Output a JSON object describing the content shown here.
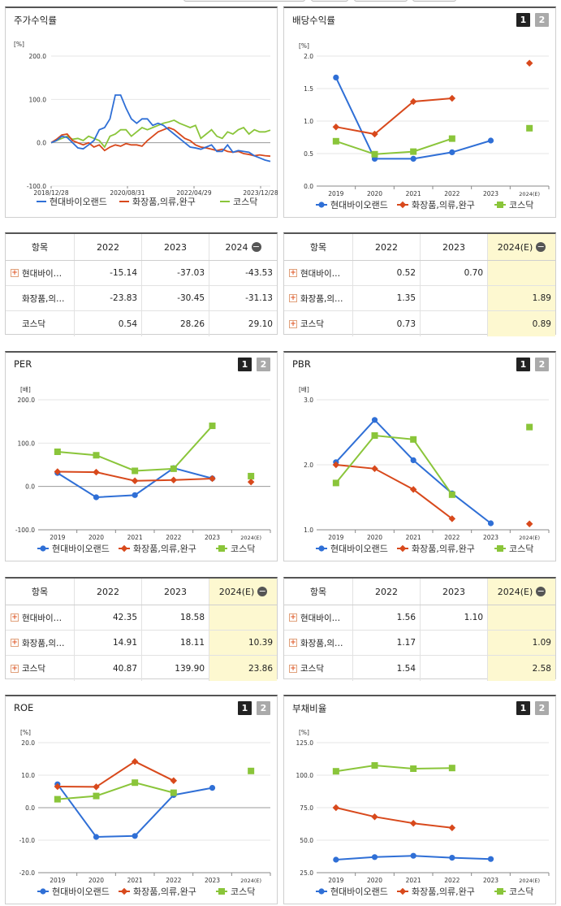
{
  "legend": {
    "s1": "현대바이오랜드",
    "s2": "화장품,의류,완구",
    "s3": "코스닥"
  },
  "colors": {
    "s1": "#2f6fd6",
    "s2": "#d8491c",
    "s3": "#8ac53a"
  },
  "panels": {
    "stock": {
      "title": "주가수익률",
      "unit": "[%]",
      "chart_data": {
        "type": "line",
        "yticks": [
          "200.0",
          "100.0",
          "0.0",
          "-100.0"
        ],
        "ylim": [
          -100,
          200
        ],
        "xticks": [
          "2018/12/28",
          "2020/08/31",
          "2022/04/29",
          "2023/12/28"
        ],
        "series": [
          {
            "name": "현대바이오랜드",
            "values": [
              0,
              5,
              15,
              12,
              0,
              -12,
              -14,
              -5,
              5,
              30,
              35,
              55,
              110,
              110,
              80,
              55,
              45,
              55,
              55,
              40,
              45,
              40,
              30,
              20,
              10,
              0,
              -10,
              -12,
              -15,
              -10,
              -5,
              -20,
              -20,
              -5,
              -22,
              -18,
              -20,
              -22,
              -30,
              -35,
              -40,
              -43
            ]
          },
          {
            "name": "화장품,의류,완구",
            "values": [
              0,
              8,
              18,
              20,
              5,
              0,
              -5,
              0,
              -10,
              -5,
              -18,
              -10,
              -5,
              -8,
              -2,
              -5,
              -5,
              -8,
              5,
              15,
              25,
              30,
              35,
              30,
              20,
              10,
              5,
              -5,
              -10,
              -12,
              -15,
              -18,
              -15,
              -20,
              -22,
              -20,
              -25,
              -27,
              -30,
              -28,
              -30,
              -31
            ]
          },
          {
            "name": "코스닥",
            "values": [
              0,
              5,
              10,
              15,
              8,
              10,
              5,
              15,
              10,
              5,
              -10,
              15,
              20,
              30,
              30,
              15,
              25,
              35,
              30,
              35,
              40,
              45,
              48,
              52,
              45,
              40,
              35,
              40,
              10,
              20,
              30,
              15,
              10,
              25,
              20,
              30,
              35,
              20,
              30,
              25,
              25,
              29
            ]
          }
        ]
      }
    },
    "dividend": {
      "title": "배당수익률",
      "unit": "[%]",
      "chart_data": {
        "type": "line",
        "categories": [
          "2019",
          "2020",
          "2021",
          "2022",
          "2023",
          "2024(E)"
        ],
        "yticks": [
          "2.0",
          "1.5",
          "1.0",
          "0.5",
          "0.0"
        ],
        "ylim": [
          0,
          2
        ],
        "series": [
          {
            "name": "현대바이오랜드",
            "values": [
              1.67,
              0.42,
              0.42,
              0.52,
              0.7,
              null
            ]
          },
          {
            "name": "화장품,의류,완구",
            "values": [
              0.91,
              0.8,
              1.3,
              1.35,
              null,
              1.89
            ]
          },
          {
            "name": "코스닥",
            "values": [
              0.69,
              0.49,
              0.53,
              0.73,
              null,
              0.89
            ]
          }
        ]
      }
    },
    "per": {
      "title": "PER",
      "unit": "[배]",
      "chart_data": {
        "type": "line",
        "categories": [
          "2019",
          "2020",
          "2021",
          "2022",
          "2023",
          "2024(E)"
        ],
        "yticks": [
          "200.0",
          "100.0",
          "0.0",
          "-100.0"
        ],
        "ylim": [
          -100,
          200
        ],
        "series": [
          {
            "name": "현대바이오랜드",
            "values": [
              31,
              -25,
              -20,
              42.35,
              18.58,
              null
            ]
          },
          {
            "name": "화장품,의류,완구",
            "values": [
              34,
              33,
              13,
              14.91,
              18.11,
              10.39
            ]
          },
          {
            "name": "코스닥",
            "values": [
              80,
              72,
              36,
              40.87,
              139.9,
              23.86
            ]
          }
        ]
      }
    },
    "pbr": {
      "title": "PBR",
      "unit": "[배]",
      "chart_data": {
        "type": "line",
        "categories": [
          "2019",
          "2020",
          "2021",
          "2022",
          "2023",
          "2024(E)"
        ],
        "yticks": [
          "3.0",
          "2.0",
          "1.0"
        ],
        "ylim": [
          1,
          3
        ],
        "series": [
          {
            "name": "현대바이오랜드",
            "values": [
              2.04,
              2.69,
              2.07,
              1.56,
              1.1,
              null
            ]
          },
          {
            "name": "화장품,의류,완구",
            "values": [
              2.0,
              1.94,
              1.62,
              1.17,
              null,
              1.09
            ]
          },
          {
            "name": "코스닥",
            "values": [
              1.72,
              2.45,
              2.39,
              1.54,
              null,
              2.58
            ]
          }
        ]
      }
    },
    "roe": {
      "title": "ROE",
      "unit": "[%]",
      "chart_data": {
        "type": "line",
        "categories": [
          "2019",
          "2020",
          "2021",
          "2022",
          "2023",
          "2024(E)"
        ],
        "yticks": [
          "20.0",
          "10.0",
          "0.0",
          "-10.0",
          "-20.0"
        ],
        "ylim": [
          -20,
          20
        ],
        "series": [
          {
            "name": "현대바이오랜드",
            "values": [
              7.2,
              -9.0,
              -8.7,
              3.9,
              6.1,
              null
            ]
          },
          {
            "name": "화장품,의류,완구",
            "values": [
              6.5,
              6.4,
              14.2,
              8.3,
              null,
              null
            ]
          },
          {
            "name": "코스닥",
            "values": [
              2.6,
              3.6,
              7.7,
              4.6,
              null,
              11.3
            ]
          }
        ]
      }
    },
    "debt": {
      "title": "부채비율",
      "unit": "[%]",
      "chart_data": {
        "type": "line",
        "categories": [
          "2019",
          "2020",
          "2021",
          "2022",
          "2023",
          "2024(E)"
        ],
        "yticks": [
          "125.0",
          "100.0",
          "75.0",
          "50.0",
          "25.0"
        ],
        "ylim": [
          25,
          125
        ],
        "series": [
          {
            "name": "현대바이오랜드",
            "values": [
              35,
              37,
              38,
              36.5,
              35.5,
              null
            ]
          },
          {
            "name": "화장품,의류,완구",
            "values": [
              75,
              68,
              63,
              59.5,
              null,
              null
            ]
          },
          {
            "name": "코스닥",
            "values": [
              103,
              107.5,
              105,
              105.5,
              null,
              null
            ]
          }
        ]
      }
    }
  },
  "tables": {
    "stock": {
      "header": [
        "항목",
        "2022",
        "2023",
        "2024"
      ],
      "minus": "−",
      "rows": [
        {
          "name": "현대바이오랜드",
          "short": "현대바이…",
          "plus": true,
          "vals": [
            "-15.14",
            "-37.03",
            "-43.53"
          ]
        },
        {
          "name": "화장품,의류,완구",
          "short": "화장품,의…",
          "plus": false,
          "vals": [
            "-23.83",
            "-30.45",
            "-31.13"
          ]
        },
        {
          "name": "코스닥",
          "short": "코스닥",
          "plus": false,
          "vals": [
            "0.54",
            "28.26",
            "29.10"
          ]
        }
      ]
    },
    "dividend": {
      "header": [
        "항목",
        "2022",
        "2023",
        "2024(E)"
      ],
      "minus": "−",
      "rows": [
        {
          "name": "현대바이오랜드",
          "short": "현대바이…",
          "plus": true,
          "vals": [
            "0.52",
            "0.70",
            ""
          ]
        },
        {
          "name": "화장품,의류,완구",
          "short": "화장품,의…",
          "plus": true,
          "vals": [
            "1.35",
            "",
            "1.89"
          ]
        },
        {
          "name": "코스닥",
          "short": "코스닥",
          "plus": true,
          "vals": [
            "0.73",
            "",
            "0.89"
          ]
        }
      ]
    },
    "per": {
      "header": [
        "항목",
        "2022",
        "2023",
        "2024(E)"
      ],
      "minus": "−",
      "rows": [
        {
          "name": "현대바이오랜드",
          "short": "현대바이…",
          "plus": true,
          "vals": [
            "42.35",
            "18.58",
            ""
          ]
        },
        {
          "name": "화장품,의류,완구",
          "short": "화장품,의…",
          "plus": true,
          "vals": [
            "14.91",
            "18.11",
            "10.39"
          ]
        },
        {
          "name": "코스닥",
          "short": "코스닥",
          "plus": true,
          "vals": [
            "40.87",
            "139.90",
            "23.86"
          ]
        }
      ]
    },
    "pbr": {
      "header": [
        "항목",
        "2022",
        "2023",
        "2024(E)"
      ],
      "minus": "−",
      "rows": [
        {
          "name": "현대바이오랜드",
          "short": "현대바이…",
          "plus": true,
          "vals": [
            "1.56",
            "1.10",
            ""
          ]
        },
        {
          "name": "화장품,의류,완구",
          "short": "화장품,의…",
          "plus": true,
          "vals": [
            "1.17",
            "",
            "1.09"
          ]
        },
        {
          "name": "코스닥",
          "short": "코스닥",
          "plus": true,
          "vals": [
            "1.54",
            "",
            "2.58"
          ]
        }
      ]
    }
  },
  "toggle": {
    "one": "1",
    "two": "2"
  }
}
